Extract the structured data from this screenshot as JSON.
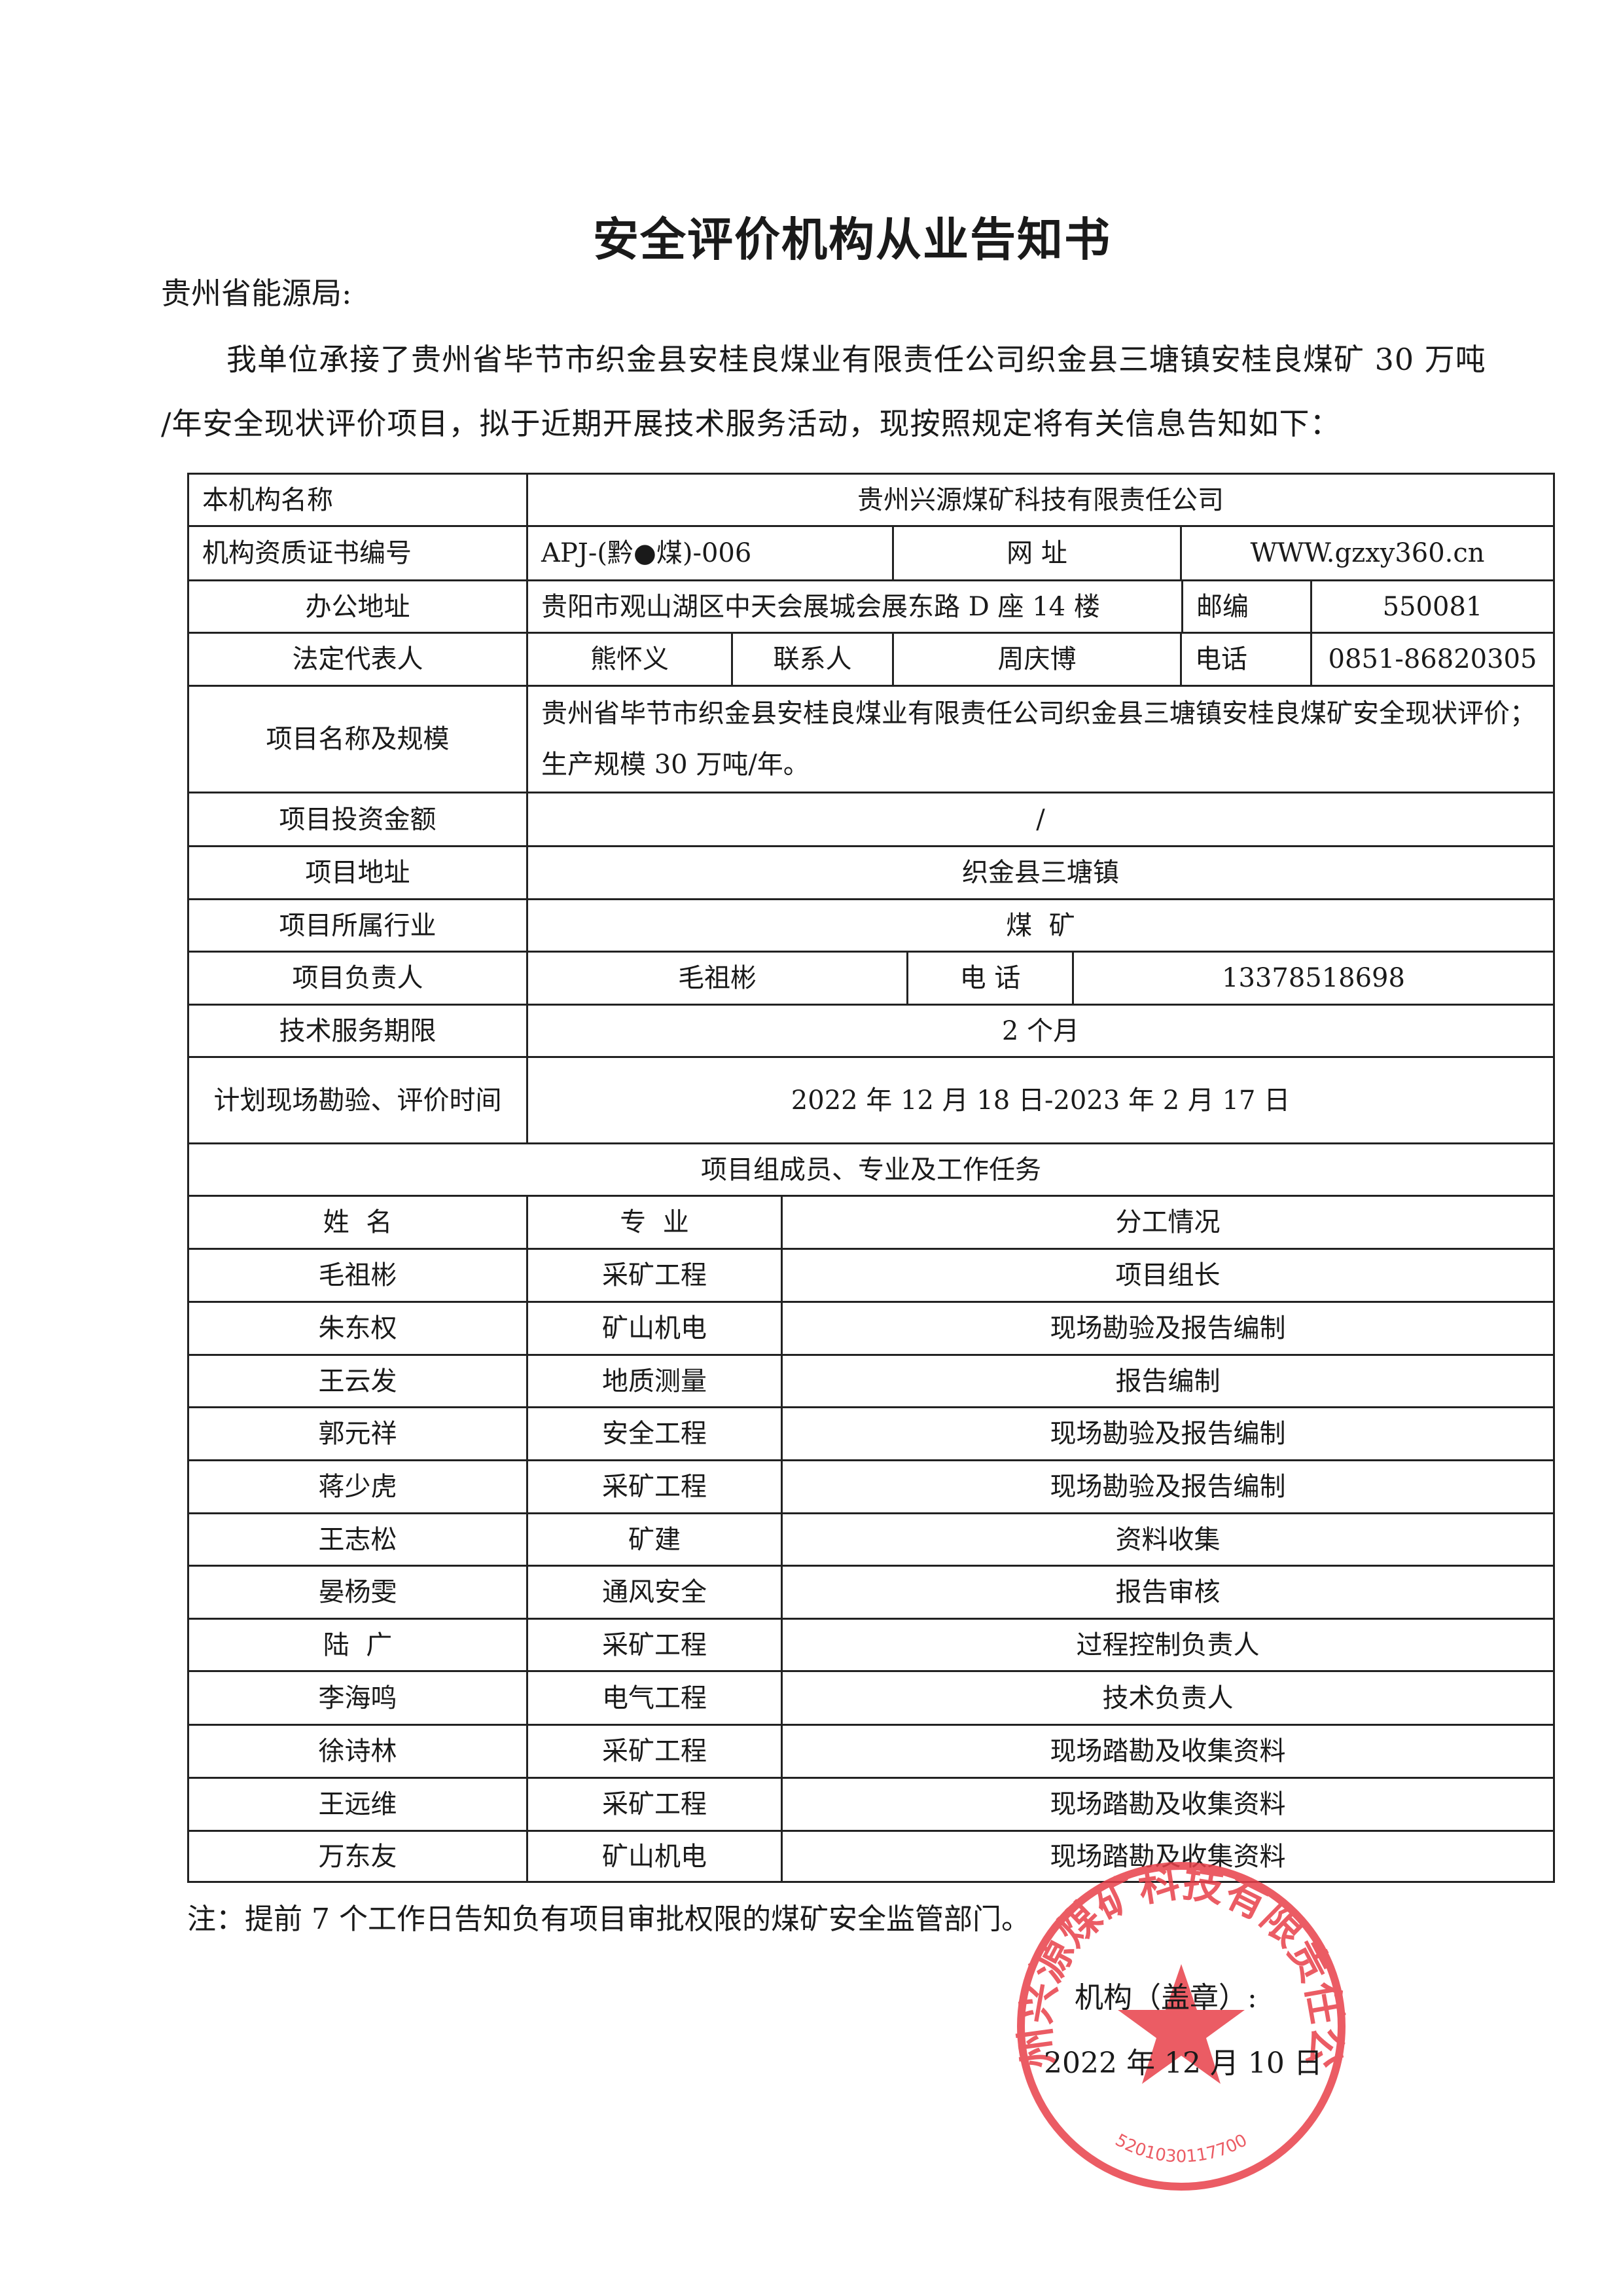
{
  "title": "安全评价机构从业告知书",
  "recipient": "贵州省能源局:",
  "paragraph_line1": "我单位承接了贵州省毕节市织金县安桂良煤业有限责任公司织金县三塘镇安桂良煤矿 30 万吨",
  "paragraph_line2": "/年安全现状评价项目，拟于近期开展技术服务活动，现按照规定将有关信息告知如下：",
  "table": {
    "org_name_label": "本机构名称",
    "org_name": "贵州兴源煤矿科技有限责任公司",
    "cert_label": "机构资质证书编号",
    "cert_no": "APJ-(黔●煤)-006",
    "website_label": "网  址",
    "website": "WWW.gzxy360.cn",
    "office_label": "办公地址",
    "office": "贵阳市观山湖区中天会展城会展东路 D 座 14 楼",
    "postcode_label": "邮编",
    "postcode": "550081",
    "legal_rep_label": "法定代表人",
    "legal_rep": "熊怀义",
    "contact_label": "联系人",
    "contact": "周庆博",
    "phone_label": "电话",
    "phone": "0851-86820305",
    "project_name_label": "项目名称及规模",
    "project_name": "贵州省毕节市织金县安桂良煤业有限责任公司织金县三塘镇安桂良煤矿安全现状评价；生产规模 30 万吨/年。",
    "investment_label": "项目投资金额",
    "investment": "/",
    "project_address_label": "项目地址",
    "project_address": "织金县三塘镇",
    "industry_label": "项目所属行业",
    "industry": "煤  矿",
    "leader_label": "项目负责人",
    "leader": "毛祖彬",
    "leader_phone_label": "电 话",
    "leader_phone": "13378518698",
    "service_period_label": "技术服务期限",
    "service_period": "2 个月",
    "schedule_label": "计划现场勘验、评价时间",
    "schedule": "2022 年 12 月 18 日-2023 年 2 月 17 日",
    "members_header": "项目组成员、专业及工作任务",
    "member_columns": [
      "姓  名",
      "专  业",
      "分工情况"
    ],
    "members": [
      [
        "毛祖彬",
        "采矿工程",
        "项目组长"
      ],
      [
        "朱东权",
        "矿山机电",
        "现场勘验及报告编制"
      ],
      [
        "王云发",
        "地质测量",
        "报告编制"
      ],
      [
        "郭元祥",
        "安全工程",
        "现场勘验及报告编制"
      ],
      [
        "蒋少虎",
        "采矿工程",
        "现场勘验及报告编制"
      ],
      [
        "王志松",
        "矿建",
        "资料收集"
      ],
      [
        "晏杨雯",
        "通风安全",
        "报告审核"
      ],
      [
        "陆  广",
        "采矿工程",
        "过程控制负责人"
      ],
      [
        "李海鸣",
        "电气工程",
        "技术负责人"
      ],
      [
        "徐诗林",
        "采矿工程",
        "现场踏勘及收集资料"
      ],
      [
        "王远维",
        "采矿工程",
        "现场踏勘及收集资料"
      ],
      [
        "万东友",
        "矿山机电",
        "现场踏勘及收集资料"
      ]
    ]
  },
  "note": "注：提前 7 个工作日告知负有项目审批权限的煤矿安全监管部门。",
  "signature_label": "机构（盖章）:",
  "signature_date": "2022 年 12 月 10 日",
  "stamp": {
    "text": "贵州兴源煤矿科技有限责任公司",
    "code": "5201030117700",
    "color": "#e8404a"
  }
}
